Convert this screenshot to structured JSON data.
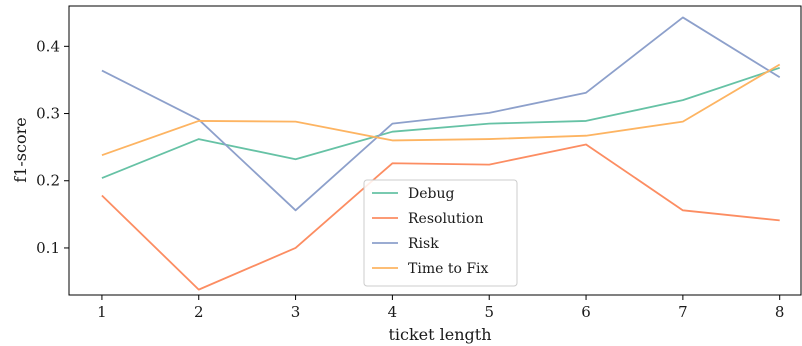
{
  "chart_data": {
    "type": "line",
    "xlabel": "ticket length",
    "ylabel": "f1-score",
    "x": [
      1,
      2,
      3,
      4,
      5,
      6,
      7,
      8
    ],
    "xlim": [
      0.66,
      8.22
    ],
    "ylim": [
      0.03,
      0.46
    ],
    "xticks": [
      "1",
      "2",
      "3",
      "4",
      "5",
      "6",
      "7",
      "8"
    ],
    "yticks": [
      {
        "value": 0.1,
        "label": "0.1"
      },
      {
        "value": 0.2,
        "label": "0.2"
      },
      {
        "value": 0.3,
        "label": "0.3"
      },
      {
        "value": 0.4,
        "label": "0.4"
      }
    ],
    "grid": false,
    "legend_position": "bottom-center",
    "series": [
      {
        "name": "Debug",
        "color": "#66c2a5",
        "values": [
          0.204,
          0.262,
          0.232,
          0.273,
          0.285,
          0.289,
          0.32,
          0.368
        ]
      },
      {
        "name": "Resolution",
        "color": "#fc8d62",
        "values": [
          0.178,
          0.038,
          0.1,
          0.226,
          0.224,
          0.254,
          0.156,
          0.141
        ]
      },
      {
        "name": "Risk",
        "color": "#8da0cb",
        "values": [
          0.364,
          0.291,
          0.156,
          0.285,
          0.301,
          0.331,
          0.443,
          0.354
        ]
      },
      {
        "name": "Time to Fix",
        "color": "#fdb462",
        "values": [
          0.238,
          0.289,
          0.288,
          0.26,
          0.262,
          0.267,
          0.288,
          0.373
        ]
      }
    ]
  }
}
